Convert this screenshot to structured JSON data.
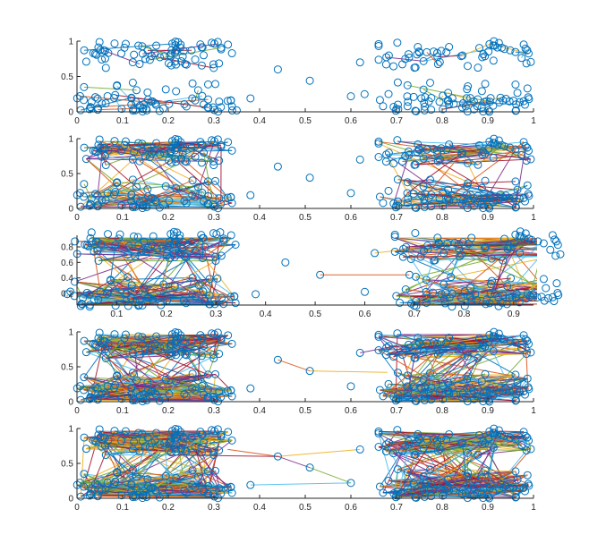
{
  "chart_data": [
    {
      "type": "scatter",
      "title": "",
      "xlabel": "",
      "ylabel": "",
      "xlim": [
        0,
        1
      ],
      "ylim": [
        0,
        1
      ],
      "xticks": [
        "0",
        "0.1",
        "0.2",
        "0.3",
        "0.4",
        "0.5",
        "0.6",
        "0.7",
        "0.8",
        "0.9",
        "1"
      ],
      "yticks": [
        "0",
        "0.5",
        "1"
      ],
      "grid": false,
      "edges_per_point": 0.15,
      "isolated_points": [
        [
          0.44,
          0.6
        ],
        [
          0.51,
          0.44
        ],
        [
          0.38,
          0.19
        ],
        [
          0.6,
          0.22
        ],
        [
          0.63,
          0.25
        ],
        [
          0.62,
          0.7
        ],
        [
          0.34,
          0.02
        ],
        [
          0.35,
          0.02
        ]
      ]
    },
    {
      "type": "scatter",
      "title": "",
      "xlabel": "",
      "ylabel": "",
      "xlim": [
        0,
        1
      ],
      "ylim": [
        0,
        1
      ],
      "xticks": [
        "0",
        "0.1",
        "0.2",
        "0.3",
        "0.4",
        "0.5",
        "0.6",
        "0.7",
        "0.8",
        "0.9",
        "1"
      ],
      "yticks": [
        "0",
        "0.5",
        "1"
      ],
      "grid": false,
      "edges_per_point": 1.4,
      "isolated_points": [
        [
          0.44,
          0.6
        ],
        [
          0.51,
          0.44
        ],
        [
          0.38,
          0.19
        ],
        [
          0.6,
          0.22
        ],
        [
          0.62,
          0.7
        ]
      ]
    },
    {
      "type": "scatter",
      "title": "",
      "xlabel": "",
      "ylabel": "",
      "xlim": [
        0.02,
        0.94
      ],
      "ylim": [
        0.05,
        0.95
      ],
      "xticks": [
        "0.1",
        "0.2",
        "0.3",
        "0.4",
        "0.5",
        "0.6",
        "0.7",
        "0.8",
        "0.9"
      ],
      "yticks": [
        "0.2",
        "0.4",
        "0.6",
        "0.8"
      ],
      "grid": false,
      "edges_per_point": 2.6,
      "isolated_points": [
        [
          0.44,
          0.6
        ],
        [
          0.51,
          0.44
        ],
        [
          0.38,
          0.19
        ],
        [
          0.6,
          0.22
        ],
        [
          0.62,
          0.72
        ],
        [
          0.69,
          0.44
        ]
      ],
      "highlight_edges": [
        [
          [
            0.51,
            0.44
          ],
          [
            0.69,
            0.44
          ]
        ],
        [
          [
            0.62,
            0.72
          ],
          [
            0.7,
            0.78
          ]
        ]
      ]
    },
    {
      "type": "scatter",
      "title": "",
      "xlabel": "",
      "ylabel": "",
      "xlim": [
        0,
        1
      ],
      "ylim": [
        0,
        1
      ],
      "xticks": [
        "0",
        "0.1",
        "0.2",
        "0.3",
        "0.4",
        "0.5",
        "0.6",
        "0.7",
        "0.8",
        "0.9",
        "1"
      ],
      "yticks": [
        "0",
        "0.5",
        "1"
      ],
      "grid": false,
      "edges_per_point": 3.6,
      "isolated_points": [
        [
          0.44,
          0.6
        ],
        [
          0.51,
          0.44
        ],
        [
          0.38,
          0.19
        ],
        [
          0.6,
          0.22
        ],
        [
          0.62,
          0.7
        ]
      ],
      "highlight_edges": [
        [
          [
            0.44,
            0.6
          ],
          [
            0.51,
            0.44
          ]
        ],
        [
          [
            0.51,
            0.44
          ],
          [
            0.68,
            0.42
          ]
        ],
        [
          [
            0.62,
            0.7
          ],
          [
            0.7,
            0.8
          ]
        ]
      ]
    },
    {
      "type": "scatter",
      "title": "",
      "xlabel": "",
      "ylabel": "",
      "xlim": [
        0,
        1
      ],
      "ylim": [
        0,
        1
      ],
      "xticks": [
        "0",
        "0.1",
        "0.2",
        "0.3",
        "0.4",
        "0.5",
        "0.6",
        "0.7",
        "0.8",
        "0.9",
        "1"
      ],
      "yticks": [
        "0",
        "0.5",
        "1"
      ],
      "grid": false,
      "edges_per_point": 4.5,
      "isolated_points": [
        [
          0.44,
          0.6
        ],
        [
          0.51,
          0.44
        ],
        [
          0.38,
          0.19
        ],
        [
          0.6,
          0.22
        ],
        [
          0.62,
          0.7
        ]
      ],
      "highlight_edges": [
        [
          [
            0.33,
            0.7
          ],
          [
            0.44,
            0.6
          ]
        ],
        [
          [
            0.44,
            0.6
          ],
          [
            0.62,
            0.7
          ]
        ],
        [
          [
            0.44,
            0.6
          ],
          [
            0.51,
            0.44
          ]
        ],
        [
          [
            0.51,
            0.44
          ],
          [
            0.6,
            0.22
          ]
        ],
        [
          [
            0.38,
            0.19
          ],
          [
            0.6,
            0.22
          ]
        ],
        [
          [
            0.2,
            0.62
          ],
          [
            0.44,
            0.6
          ]
        ]
      ]
    }
  ],
  "point_clusters": [
    {
      "x": [
        0.0,
        0.34
      ],
      "y": [
        0.62,
        1.0
      ],
      "count": 70
    },
    {
      "x": [
        0.0,
        0.34
      ],
      "y": [
        0.0,
        0.42
      ],
      "count": 70
    },
    {
      "x": [
        0.66,
        1.0
      ],
      "y": [
        0.62,
        1.0
      ],
      "count": 55
    },
    {
      "x": [
        0.66,
        1.0
      ],
      "y": [
        0.0,
        0.42
      ],
      "count": 75
    }
  ],
  "colors": {
    "marker": "#0072BD",
    "axis": "#262626",
    "background": "#ffffff",
    "series_palette": [
      "#0072BD",
      "#D95319",
      "#EDB120",
      "#7E2F8E",
      "#77AC30",
      "#4DBEEE",
      "#A2142F"
    ]
  }
}
